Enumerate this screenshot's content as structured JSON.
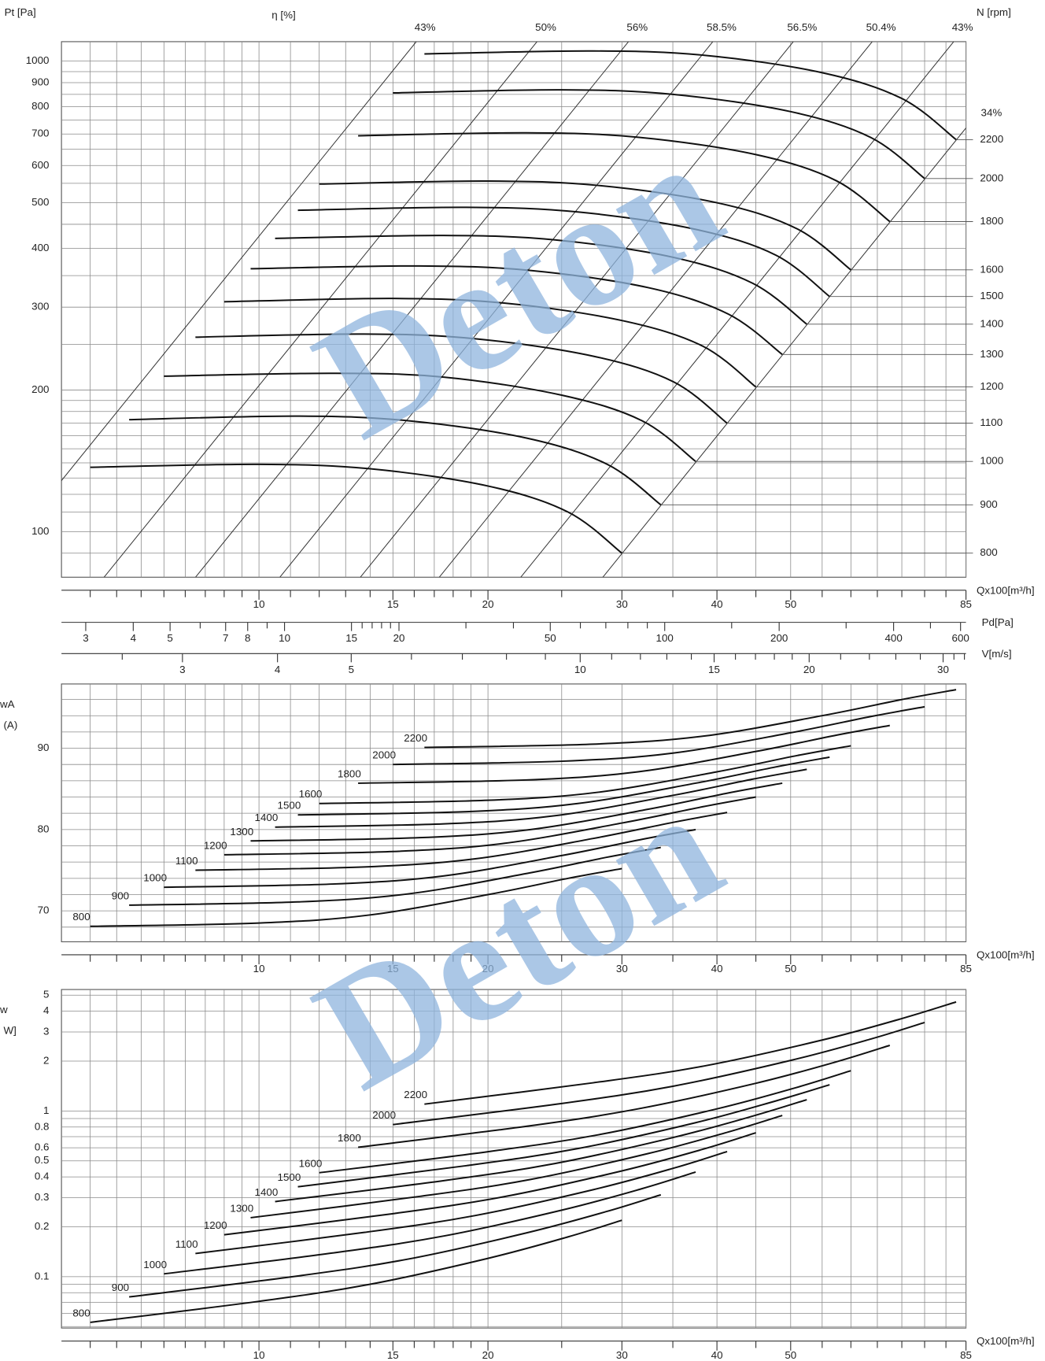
{
  "watermark": "Deton",
  "chart_data": [
    {
      "type": "line",
      "ylabel": "Pt [Pa]",
      "y2label": "N [rpm]",
      "eta_label": "η [%]",
      "xlabel": "Qx100[m³/h]",
      "log_x": true,
      "log_y": true,
      "grid": true,
      "series_label_position": "right-axis",
      "xlim": [
        5.5,
        85
      ],
      "xticks": [
        10,
        15,
        20,
        30,
        40,
        50,
        85
      ],
      "xminor": [
        6,
        6.5,
        7,
        7.5,
        8,
        8.5,
        9,
        9.5,
        11,
        12,
        13,
        14,
        16,
        17,
        18,
        19,
        25,
        35,
        45,
        55,
        60,
        65,
        70,
        75,
        80
      ],
      "ylim": [
        80,
        1100
      ],
      "yticks": [
        100,
        200,
        300,
        400,
        500,
        600,
        700,
        800,
        900,
        1000
      ],
      "yminor": [
        90,
        110,
        120,
        130,
        140,
        150,
        160,
        170,
        180,
        190,
        250,
        350,
        450,
        550,
        650,
        750,
        850,
        950
      ],
      "series": [
        {
          "name": "800",
          "color": "#111111",
          "x": [
            6,
            10,
            14,
            20,
            25.5,
            30
          ],
          "values": [
            137,
            139,
            136,
            125,
            110,
            90
          ]
        },
        {
          "name": "900",
          "color": "#111111",
          "x": [
            6.75,
            11.25,
            15.75,
            22.5,
            28.7,
            33.75
          ],
          "values": [
            173,
            176,
            172,
            158,
            139,
            114
          ]
        },
        {
          "name": "1000",
          "color": "#111111",
          "x": [
            7.5,
            12.5,
            17.5,
            25,
            31.9,
            37.5
          ],
          "values": [
            214,
            217,
            213,
            195,
            172,
            141
          ]
        },
        {
          "name": "1100",
          "color": "#111111",
          "x": [
            8.25,
            13.75,
            19.25,
            27.5,
            35.1,
            41.25
          ],
          "values": [
            259,
            263,
            257,
            236,
            208,
            170
          ]
        },
        {
          "name": "1200",
          "color": "#111111",
          "x": [
            9,
            15,
            21,
            30,
            38.3,
            45
          ],
          "values": [
            308,
            313,
            306,
            281,
            248,
            203
          ]
        },
        {
          "name": "1300",
          "color": "#111111",
          "x": [
            9.75,
            16.25,
            22.75,
            32.5,
            41.4,
            48.75
          ],
          "values": [
            362,
            367,
            359,
            330,
            290,
            238
          ]
        },
        {
          "name": "1400",
          "color": "#111111",
          "x": [
            10.5,
            17.5,
            24.5,
            35,
            44.6,
            52.5
          ],
          "values": [
            420,
            426,
            417,
            383,
            337,
            276
          ]
        },
        {
          "name": "1500",
          "color": "#111111",
          "x": [
            11.25,
            18.75,
            26.25,
            37.5,
            47.8,
            56.25
          ],
          "values": [
            482,
            489,
            478,
            439,
            387,
            316
          ]
        },
        {
          "name": "1600",
          "color": "#111111",
          "x": [
            12,
            20,
            28,
            40,
            51,
            60
          ],
          "values": [
            548,
            556,
            544,
            500,
            440,
            360
          ]
        },
        {
          "name": "1800",
          "color": "#111111",
          "x": [
            13.5,
            22.5,
            31.5,
            45,
            57.4,
            67.5
          ],
          "values": [
            694,
            704,
            689,
            633,
            557,
            456
          ]
        },
        {
          "name": "2000",
          "color": "#111111",
          "x": [
            15,
            25,
            35,
            50,
            63.75,
            75
          ],
          "values": [
            856,
            869,
            850,
            781,
            688,
            563
          ]
        },
        {
          "name": "2200",
          "color": "#111111",
          "x": [
            16.5,
            27.5,
            38.5,
            55,
            70.1,
            82.5
          ],
          "values": [
            1036,
            1051,
            1029,
            945,
            832,
            681
          ]
        }
      ],
      "efficiency_lines": [
        {
          "label": "43%",
          "q": 16.1
        },
        {
          "label": "50%",
          "q": 23.2
        },
        {
          "label": "56%",
          "q": 30.6
        },
        {
          "label": "58.5%",
          "q": 39.5
        },
        {
          "label": "56.5%",
          "q": 50.4
        },
        {
          "label": "50.4%",
          "q": 64
        },
        {
          "label": "43%",
          "q": 81.9
        },
        {
          "label": "34%",
          "q": 105
        }
      ],
      "pd_axis": {
        "label": "Pd[Pa]",
        "lim": [
          2.59,
          620
        ],
        "ticks": [
          3,
          4,
          5,
          7,
          8,
          10,
          15,
          20,
          50,
          100,
          200,
          400,
          600
        ],
        "minor": [
          6,
          9,
          16,
          17,
          18,
          19,
          30,
          40,
          60,
          70,
          80,
          90,
          150,
          300,
          500
        ]
      },
      "v_axis": {
        "label": "V[m/s]",
        "lim": [
          2.08,
          32.15
        ],
        "ticks": [
          3,
          4,
          5,
          10,
          15,
          20,
          30
        ],
        "minor": [
          2.5,
          6,
          7,
          8,
          9,
          11,
          12,
          13,
          14,
          16,
          17,
          18,
          19,
          22,
          24,
          26,
          28,
          31,
          32
        ]
      }
    },
    {
      "type": "line",
      "ylabel": [
        "wA",
        "(A)"
      ],
      "xlabel": "Qx100[m³/h]",
      "log_x": true,
      "log_y": false,
      "grid": true,
      "series_label_position": "start",
      "xlim": [
        5.5,
        85
      ],
      "xticks": [
        10,
        15,
        20,
        30,
        40,
        50,
        85
      ],
      "xminor": [
        6,
        6.5,
        7,
        7.5,
        8,
        8.5,
        9,
        9.5,
        11,
        12,
        13,
        14,
        16,
        17,
        18,
        19,
        25,
        35,
        45,
        55,
        60,
        65,
        70,
        75,
        80
      ],
      "ylim": [
        66.2,
        97.9
      ],
      "yticks": [
        70,
        80,
        90
      ],
      "yminor": [
        68,
        72,
        74,
        76,
        78,
        82,
        84,
        86,
        88,
        92,
        94,
        96
      ],
      "series": [
        {
          "name": "800",
          "color": "#111111",
          "x": [
            6,
            10,
            14,
            20,
            25.5,
            30
          ],
          "values": [
            68.1,
            68.5,
            69.5,
            72.0,
            74.0,
            75.2
          ]
        },
        {
          "name": "900",
          "color": "#111111",
          "x": [
            6.75,
            11.25,
            15.75,
            22.5,
            28.7,
            33.75
          ],
          "values": [
            70.7,
            71.1,
            72.1,
            74.6,
            76.6,
            77.8
          ]
        },
        {
          "name": "1000",
          "color": "#111111",
          "x": [
            7.5,
            12.5,
            17.5,
            25,
            31.9,
            37.5
          ],
          "values": [
            72.9,
            73.3,
            74.3,
            76.8,
            78.8,
            80.0
          ]
        },
        {
          "name": "1100",
          "color": "#111111",
          "x": [
            8.25,
            13.75,
            19.25,
            27.5,
            35.1,
            41.25
          ],
          "values": [
            75.0,
            75.4,
            76.4,
            78.9,
            80.9,
            82.1
          ]
        },
        {
          "name": "1200",
          "color": "#111111",
          "x": [
            9,
            15,
            21,
            30,
            38.3,
            45
          ],
          "values": [
            76.9,
            77.3,
            78.3,
            80.8,
            82.8,
            84.0
          ]
        },
        {
          "name": "1300",
          "color": "#111111",
          "x": [
            9.75,
            16.25,
            22.75,
            32.5,
            41.4,
            48.75
          ],
          "values": [
            78.6,
            79.0,
            80.0,
            82.5,
            84.5,
            85.7
          ]
        },
        {
          "name": "1400",
          "color": "#111111",
          "x": [
            10.5,
            17.5,
            24.5,
            35,
            44.6,
            52.5
          ],
          "values": [
            80.3,
            80.7,
            81.7,
            84.2,
            86.2,
            87.4
          ]
        },
        {
          "name": "1500",
          "color": "#111111",
          "x": [
            11.25,
            18.75,
            26.25,
            37.5,
            47.8,
            56.25
          ],
          "values": [
            81.8,
            82.2,
            83.2,
            85.7,
            87.7,
            88.9
          ]
        },
        {
          "name": "1600",
          "color": "#111111",
          "x": [
            12,
            20,
            28,
            40,
            51,
            60
          ],
          "values": [
            83.2,
            83.6,
            84.6,
            87.1,
            89.1,
            90.3
          ]
        },
        {
          "name": "1800",
          "color": "#111111",
          "x": [
            13.5,
            22.5,
            31.5,
            45,
            57.4,
            67.5
          ],
          "values": [
            85.7,
            86.1,
            87.1,
            89.6,
            91.6,
            92.8
          ]
        },
        {
          "name": "2000",
          "color": "#111111",
          "x": [
            15,
            25,
            35,
            50,
            63.75,
            75
          ],
          "values": [
            88.0,
            88.4,
            89.4,
            91.9,
            93.9,
            95.1
          ]
        },
        {
          "name": "2200",
          "color": "#111111",
          "x": [
            16.5,
            27.5,
            38.5,
            55,
            70.1,
            82.5
          ],
          "values": [
            90.1,
            90.5,
            91.5,
            94.0,
            96.0,
            97.2
          ]
        }
      ]
    },
    {
      "type": "line",
      "ylabel": [
        "w",
        "W]"
      ],
      "xlabel": "Qx100[m³/h]",
      "log_x": true,
      "log_y": true,
      "grid": true,
      "series_label_position": "start",
      "xlim": [
        5.5,
        85
      ],
      "xticks": [
        10,
        15,
        20,
        30,
        40,
        50,
        85
      ],
      "xminor": [
        6,
        6.5,
        7,
        7.5,
        8,
        8.5,
        9,
        9.5,
        11,
        12,
        13,
        14,
        16,
        17,
        18,
        19,
        25,
        35,
        45,
        55,
        60,
        65,
        70,
        75,
        80
      ],
      "ylim": [
        0.049,
        5.41
      ],
      "yticks": [
        0.1,
        0.2,
        0.3,
        0.4,
        0.5,
        0.6,
        0.8,
        1,
        2,
        3,
        4,
        5
      ],
      "yminor": [
        0.05,
        0.06,
        0.07,
        0.08,
        0.09,
        0.7,
        0.9
      ],
      "series": [
        {
          "name": "800",
          "color": "#111111",
          "x": [
            6,
            10,
            14,
            20,
            25.5,
            30
          ],
          "values": [
            0.053,
            0.071,
            0.09,
            0.129,
            0.174,
            0.219
          ]
        },
        {
          "name": "900",
          "color": "#111111",
          "x": [
            6.75,
            11.25,
            15.75,
            22.5,
            28.7,
            33.75
          ],
          "values": [
            0.0755,
            0.101,
            0.128,
            0.184,
            0.248,
            0.312
          ]
        },
        {
          "name": "1000",
          "color": "#111111",
          "x": [
            7.5,
            12.5,
            17.5,
            25,
            31.9,
            37.5
          ],
          "values": [
            0.104,
            0.139,
            0.176,
            0.252,
            0.34,
            0.428
          ]
        },
        {
          "name": "1100",
          "color": "#111111",
          "x": [
            8.25,
            13.75,
            19.25,
            27.5,
            35.1,
            41.25
          ],
          "values": [
            0.138,
            0.185,
            0.234,
            0.335,
            0.452,
            0.569
          ]
        },
        {
          "name": "1200",
          "color": "#111111",
          "x": [
            9,
            15,
            21,
            30,
            38.3,
            45
          ],
          "values": [
            0.179,
            0.24,
            0.304,
            0.435,
            0.587,
            0.739
          ]
        },
        {
          "name": "1300",
          "color": "#111111",
          "x": [
            9.75,
            16.25,
            22.75,
            32.5,
            41.4,
            48.75
          ],
          "values": [
            0.227,
            0.305,
            0.386,
            0.554,
            0.747,
            0.94
          ]
        },
        {
          "name": "1400",
          "color": "#111111",
          "x": [
            10.5,
            17.5,
            24.5,
            35,
            44.6,
            52.5
          ],
          "values": [
            0.284,
            0.38,
            0.482,
            0.691,
            0.932,
            1.17
          ]
        },
        {
          "name": "1500",
          "color": "#111111",
          "x": [
            11.25,
            18.75,
            26.25,
            37.5,
            47.8,
            56.25
          ],
          "values": [
            0.349,
            0.468,
            0.593,
            0.85,
            1.15,
            1.44
          ]
        },
        {
          "name": "1600",
          "color": "#111111",
          "x": [
            12,
            20,
            28,
            40,
            51,
            60
          ],
          "values": [
            0.424,
            0.568,
            0.72,
            1.03,
            1.39,
            1.75
          ]
        },
        {
          "name": "1800",
          "color": "#111111",
          "x": [
            13.5,
            22.5,
            31.5,
            45,
            57.4,
            67.5
          ],
          "values": [
            0.604,
            0.809,
            1.03,
            1.47,
            1.98,
            2.49
          ]
        },
        {
          "name": "2000",
          "color": "#111111",
          "x": [
            15,
            25,
            35,
            50,
            63.75,
            75
          ],
          "values": [
            0.828,
            1.11,
            1.41,
            2.02,
            2.72,
            3.42
          ]
        },
        {
          "name": "2200",
          "color": "#111111",
          "x": [
            16.5,
            27.5,
            38.5,
            55,
            70.1,
            82.5
          ],
          "values": [
            1.1,
            1.48,
            1.87,
            2.68,
            3.62,
            4.55
          ]
        }
      ]
    }
  ]
}
